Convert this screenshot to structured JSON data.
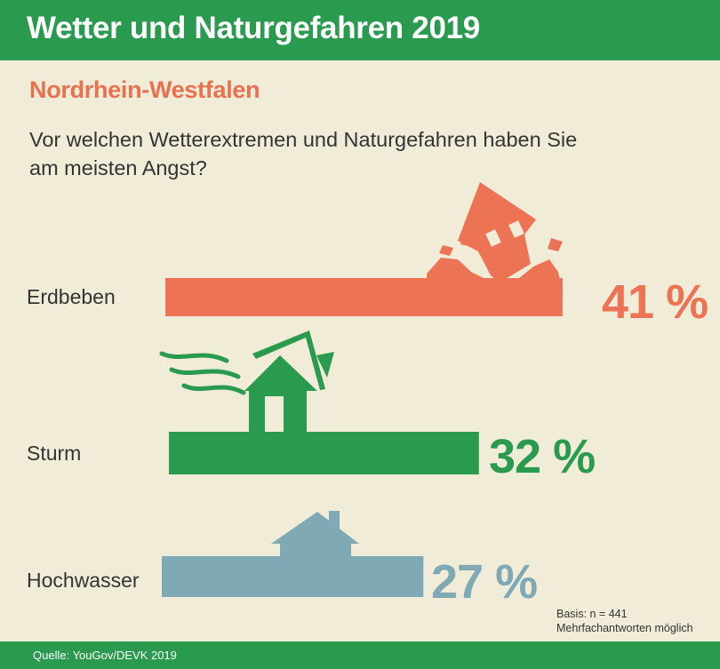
{
  "header": {
    "title": "Wetter und Naturgefahren 2019"
  },
  "region": "Nordrhein-Westfalen",
  "question_lines": [
    "Vor welchen Wetterextremen und Naturgefahren haben Sie",
    "am meisten Angst?"
  ],
  "chart_data": {
    "type": "bar",
    "orientation": "horizontal",
    "categories": [
      "Erdbeben",
      "Sturm",
      "Hochwasser"
    ],
    "values": [
      41,
      32,
      27
    ],
    "value_labels": [
      "41 %",
      "32 %",
      "27 %"
    ],
    "unit": "%",
    "colors": [
      "#ec7353",
      "#2a9a4f",
      "#7fa9b5"
    ],
    "icons": [
      "earthquake-house-icon",
      "storm-house-icon",
      "flood-house-icon"
    ],
    "grid": false,
    "legend": "none"
  },
  "note_lines": [
    "Basis: n = 441",
    "Mehrfachantworten möglich"
  ],
  "footer": {
    "source": "Quelle: YouGov/DEVK 2019"
  }
}
